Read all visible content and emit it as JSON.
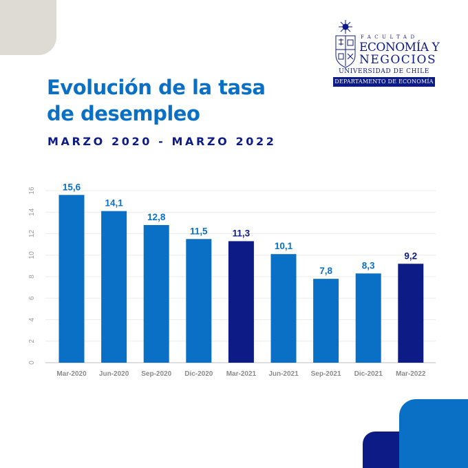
{
  "header": {
    "title_line1": "Evolución de la tasa",
    "title_line2": "de desempleo",
    "subtitle": "MARZO 2020 - MARZO 2022"
  },
  "logo": {
    "line_facultad": "FACULTAD",
    "line1": "ECONOMÍA Y",
    "line2": "NEGOCIOS",
    "university": "UNIVERSIDAD DE CHILE",
    "department": "DEPARTAMENTO DE ECONOMÍA"
  },
  "colors": {
    "bar_primary": "#0a70c6",
    "bar_highlight": "#0d1b86",
    "title": "#0a70c6",
    "subtitle": "#0d1b86",
    "corner_top_left": "#dedad4"
  },
  "chart_data": {
    "type": "bar",
    "categories": [
      "Mar-2020",
      "Jun-2020",
      "Sep-2020",
      "Dic-2020",
      "Mar-2021",
      "Jun-2021",
      "Sep-2021",
      "Dic-2021",
      "Mar-2022"
    ],
    "values": [
      15.6,
      14.1,
      12.8,
      11.5,
      11.3,
      10.1,
      7.8,
      8.3,
      9.2
    ],
    "value_labels": [
      "15,6",
      "14,1",
      "12,8",
      "11,5",
      "11,3",
      "10,1",
      "7,8",
      "8,3",
      "9,2"
    ],
    "highlight": [
      false,
      false,
      false,
      false,
      true,
      false,
      false,
      false,
      true
    ],
    "ylim": [
      0,
      16
    ],
    "yticks": [
      0,
      2,
      4,
      6,
      8,
      10,
      12,
      14,
      16
    ],
    "ytick_labels": [
      "0",
      "2",
      "4",
      "6",
      "8",
      "10",
      "12",
      "14",
      "16"
    ],
    "grid": true,
    "title": "Evolución de la tasa de desempleo",
    "xlabel": "",
    "ylabel": ""
  }
}
